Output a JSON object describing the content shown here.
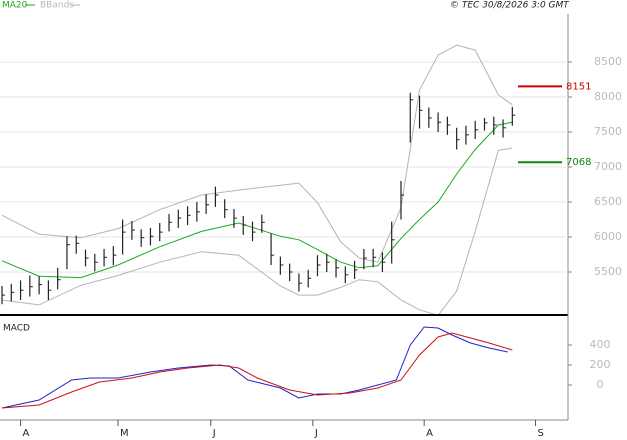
{
  "chart_data": [
    {
      "type": "ohlc",
      "source": "© TEC 30/8/2026 3:0 GMT",
      "xlim": [
        0,
        122
      ],
      "xticks": [
        {
          "value": 4,
          "label": "A"
        },
        {
          "value": 25,
          "label": "M"
        },
        {
          "value": 45,
          "label": "J"
        },
        {
          "value": 67,
          "label": "J"
        },
        {
          "value": 91,
          "label": "A"
        },
        {
          "value": 115,
          "label": "S"
        }
      ],
      "ylim": [
        4900,
        9100
      ],
      "yticks": [
        5500,
        6000,
        6500,
        7000,
        7500,
        8000,
        8500
      ],
      "grid": true,
      "bar_color": "#222222",
      "x": [
        0,
        2,
        4,
        6,
        8,
        10,
        12,
        14,
        16,
        18,
        20,
        22,
        24,
        26,
        28,
        30,
        32,
        34,
        36,
        38,
        40,
        42,
        44,
        46,
        48,
        50,
        52,
        54,
        56,
        58,
        60,
        62,
        64,
        66,
        68,
        70,
        72,
        74,
        76,
        78,
        80,
        82,
        84,
        86,
        88,
        90,
        92,
        94,
        96,
        98,
        100,
        102,
        104,
        106,
        108,
        110
      ],
      "high": [
        5300,
        5330,
        5380,
        5450,
        5440,
        5380,
        5560,
        6010,
        6020,
        5820,
        5760,
        5830,
        5870,
        6250,
        6230,
        6110,
        6130,
        6200,
        6330,
        6390,
        6440,
        6500,
        6610,
        6720,
        6540,
        6400,
        6300,
        6220,
        6320,
        6050,
        5720,
        5620,
        5480,
        5530,
        5740,
        5760,
        5680,
        5580,
        5660,
        5830,
        5830,
        5780,
        6220,
        6800,
        8060,
        8020,
        7850,
        7780,
        7720,
        7560,
        7590,
        7660,
        7700,
        7720,
        7680,
        7860
      ],
      "low": [
        5040,
        5080,
        5100,
        5150,
        5180,
        5100,
        5250,
        5540,
        5760,
        5580,
        5510,
        5580,
        5600,
        5750,
        5960,
        5860,
        5880,
        5940,
        6080,
        6130,
        6170,
        6220,
        6330,
        6430,
        6270,
        6130,
        6030,
        5940,
        6060,
        5600,
        5460,
        5370,
        5220,
        5280,
        5440,
        5500,
        5420,
        5340,
        5400,
        5540,
        5570,
        5500,
        5620,
        6250,
        7350,
        7550,
        7560,
        7500,
        7460,
        7250,
        7320,
        7400,
        7520,
        7460,
        7420,
        7590
      ],
      "close": [
        5170,
        5210,
        5240,
        5290,
        5320,
        5240,
        5390,
        5890,
        5910,
        5700,
        5640,
        5710,
        5740,
        6070,
        6100,
        5990,
        6010,
        6070,
        6210,
        6270,
        6310,
        6360,
        6460,
        6600,
        6390,
        6270,
        6170,
        6070,
        6210,
        5740,
        5600,
        5500,
        5340,
        5410,
        5600,
        5640,
        5560,
        5460,
        5530,
        5700,
        5710,
        5640,
        5960,
        6600,
        7960,
        7810,
        7700,
        7640,
        7600,
        7390,
        7460,
        7530,
        7630,
        7600,
        7560,
        7740
      ],
      "series": [
        {
          "name": "MA20",
          "color": "#1aaa1a",
          "x": [
            0,
            8,
            17,
            25,
            34,
            43,
            51,
            60,
            64,
            68,
            73,
            77,
            81,
            86,
            90,
            94,
            98,
            102,
            107,
            110
          ],
          "values": [
            5660,
            5440,
            5420,
            5600,
            5860,
            6080,
            6200,
            6010,
            5960,
            5820,
            5640,
            5560,
            5590,
            5980,
            6250,
            6500,
            6900,
            7250,
            7600,
            7640
          ]
        }
      ],
      "bands": {
        "name": "BBands",
        "color": "#b4b4b4",
        "x": [
          0,
          8,
          17,
          25,
          34,
          43,
          51,
          60,
          64,
          68,
          73,
          77,
          81,
          86,
          90,
          94,
          98,
          102,
          107,
          110
        ],
        "upper": [
          6310,
          6040,
          5990,
          6120,
          6390,
          6600,
          6670,
          6740,
          6770,
          6490,
          5930,
          5700,
          5640,
          6420,
          8100,
          8600,
          8740,
          8670,
          8030,
          7890
        ],
        "lower": [
          5100,
          5030,
          5310,
          5450,
          5640,
          5790,
          5740,
          5300,
          5170,
          5170,
          5280,
          5390,
          5360,
          5100,
          4960,
          4880,
          5230,
          6080,
          7240,
          7270
        ]
      },
      "levels": [
        {
          "value": 8151,
          "color": "#cc0000"
        },
        {
          "value": 7068,
          "color": "#118811"
        }
      ]
    },
    {
      "type": "line",
      "title": "MACD",
      "xlim": [
        0,
        122
      ],
      "ylim": [
        -350,
        670
      ],
      "yticks": [
        0,
        200,
        400
      ],
      "series": [
        {
          "color": "#2020d0",
          "x": [
            0,
            8,
            15,
            19,
            25,
            32,
            38,
            45,
            49,
            53,
            60,
            64,
            68,
            73,
            77,
            81,
            85,
            88,
            91,
            94,
            97,
            101,
            105,
            109
          ],
          "values": [
            -230,
            -150,
            50,
            70,
            70,
            130,
            170,
            200,
            190,
            50,
            -30,
            -130,
            -90,
            -90,
            -50,
            0,
            50,
            400,
            580,
            570,
            500,
            420,
            370,
            330
          ]
        },
        {
          "color": "#cc1010",
          "x": [
            0,
            8,
            15,
            21,
            28,
            34,
            40,
            47,
            51,
            55,
            62,
            68,
            75,
            81,
            86,
            90,
            94,
            97,
            101,
            105,
            110
          ],
          "values": [
            -230,
            -200,
            -70,
            30,
            70,
            130,
            170,
            200,
            170,
            70,
            -50,
            -100,
            -80,
            -30,
            50,
            300,
            480,
            520,
            470,
            420,
            350
          ]
        }
      ]
    }
  ]
}
